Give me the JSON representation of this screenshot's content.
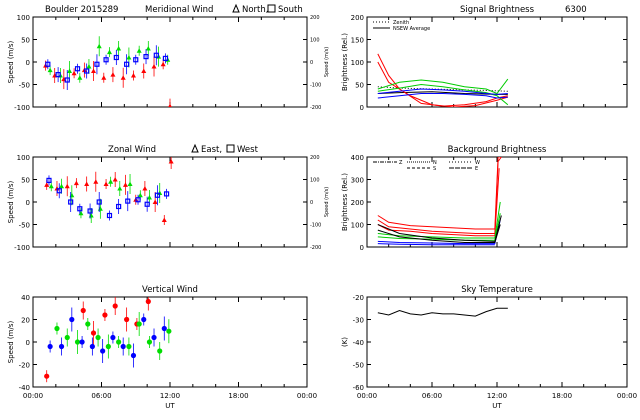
{
  "chart_data": [
    {
      "id": "meridional",
      "type": "scatter",
      "title_left": "Boulder  2015289",
      "title": "Meridional Wind",
      "legend_text_1": "North,",
      "legend_text_2": "South",
      "ylabel": "Speed (m/s)",
      "ylabel_right": "Speed (m/s)",
      "ylim": [
        -100,
        100
      ],
      "yticks": [
        "100",
        "50",
        "0",
        "-50",
        "-100"
      ],
      "yticks_right": [
        "200",
        "100",
        "0",
        "-100",
        "-200"
      ],
      "xlim": [
        0,
        24
      ],
      "series": [
        {
          "color": "#ff0000",
          "marker": "triangle",
          "x": [
            1.1,
            1.9,
            2.7,
            3.6,
            4.5,
            5.3,
            6.2,
            7.0,
            7.9,
            8.8,
            9.7,
            10.6,
            11.4,
            12.0
          ],
          "y": [
            -8,
            -30,
            -38,
            -25,
            -18,
            -20,
            -35,
            -28,
            -35,
            -30,
            -20,
            -10,
            -5,
            -98
          ]
        },
        {
          "color": "#00dd00",
          "marker": "triangle",
          "x": [
            1.5,
            2.4,
            3.2,
            4.1,
            4.9,
            5.8,
            6.7,
            7.5,
            8.4,
            9.3,
            10.1,
            11.0,
            11.8
          ],
          "y": [
            -18,
            -30,
            -20,
            -35,
            -10,
            35,
            22,
            30,
            10,
            25,
            30,
            12,
            5
          ]
        },
        {
          "color": "#0000ff",
          "marker": "square",
          "x": [
            1.3,
            2.2,
            3.0,
            3.9,
            4.7,
            5.6,
            6.4,
            7.3,
            8.2,
            9.0,
            9.9,
            10.8,
            11.6
          ],
          "y": [
            -5,
            -28,
            -40,
            -15,
            -20,
            -5,
            5,
            10,
            -5,
            5,
            12,
            15,
            8
          ]
        }
      ]
    },
    {
      "id": "zonal",
      "type": "scatter",
      "title": "Zonal Wind",
      "legend_text_1": "East,",
      "legend_text_2": "West",
      "ylabel": "Speed (m/s)",
      "ylabel_right": "Speed (m/s)",
      "ylim": [
        -100,
        100
      ],
      "yticks": [
        "100",
        "50",
        "0",
        "-50",
        "-100"
      ],
      "yticks_right": [
        "200",
        "100",
        "0",
        "-100",
        "-200"
      ],
      "xlim": [
        0,
        24
      ],
      "series": [
        {
          "color": "#ff0000",
          "marker": "triangle",
          "x": [
            1.2,
            2.1,
            3.0,
            3.8,
            4.7,
            5.5,
            6.4,
            7.2,
            8.1,
            9.0,
            9.8,
            10.7,
            11.5,
            12.1
          ],
          "y": [
            38,
            30,
            35,
            42,
            40,
            45,
            40,
            50,
            38,
            5,
            30,
            0,
            -40,
            90
          ]
        },
        {
          "color": "#00dd00",
          "marker": "triangle",
          "x": [
            1.6,
            2.5,
            3.4,
            4.2,
            5.1,
            5.9,
            6.8,
            7.6,
            8.5,
            9.4,
            10.2,
            11.1
          ],
          "y": [
            35,
            35,
            15,
            -25,
            -30,
            -15,
            45,
            30,
            40,
            15,
            10,
            20
          ]
        },
        {
          "color": "#0000ff",
          "marker": "square",
          "x": [
            1.4,
            2.3,
            3.3,
            4.1,
            5.0,
            5.8,
            6.7,
            7.5,
            8.3,
            9.2,
            10.0,
            10.9,
            11.7
          ],
          "y": [
            48,
            25,
            0,
            -15,
            -20,
            0,
            -30,
            -10,
            2,
            5,
            -5,
            15,
            18
          ]
        }
      ]
    },
    {
      "id": "vertical",
      "type": "scatter",
      "title": "Vertical Wind",
      "ylabel": "Speed (m/s)",
      "ylim": [
        -50,
        50
      ],
      "yticks": [
        "40",
        "20",
        "0",
        "-20",
        "-40"
      ],
      "xlim": [
        0,
        24
      ],
      "xticks": [
        "00:00",
        "06:00",
        "12:00",
        "18:00",
        "00:00"
      ],
      "xlabel": "UT",
      "series": [
        {
          "color": "#ff0000",
          "marker": "circle",
          "x": [
            1.2,
            4.4,
            5.3,
            6.3,
            7.2,
            8.2,
            9.1,
            10.1
          ],
          "y": [
            -38,
            35,
            10,
            30,
            40,
            25,
            20,
            45
          ]
        },
        {
          "color": "#00dd00",
          "marker": "circle",
          "x": [
            2.1,
            3.0,
            3.9,
            4.8,
            5.7,
            6.6,
            7.5,
            8.4,
            9.3,
            10.2,
            11.1,
            11.9
          ],
          "y": [
            15,
            5,
            0,
            20,
            5,
            -5,
            0,
            -5,
            20,
            0,
            -10,
            12
          ]
        },
        {
          "color": "#0000ff",
          "marker": "circle",
          "x": [
            1.5,
            2.5,
            3.4,
            4.3,
            5.2,
            6.1,
            7.0,
            7.9,
            8.8,
            9.7,
            10.6,
            11.5
          ],
          "y": [
            -5,
            -5,
            25,
            0,
            -5,
            -10,
            5,
            -5,
            -15,
            25,
            5,
            15
          ]
        }
      ]
    },
    {
      "id": "signal",
      "type": "line",
      "title": "Signal Brightness",
      "title_right": "6300",
      "ylabel": "Brightness (Rel.)",
      "legend": [
        "Zenith",
        "NSEW Average"
      ],
      "ylim": [
        0,
        200
      ],
      "yticks": [
        "200",
        "150",
        "100",
        "50",
        "0"
      ],
      "xlim": [
        0,
        24
      ],
      "series": [
        {
          "name": "Zenith",
          "color": "#000000",
          "dashed": true,
          "x": [
            1,
            3,
            6,
            9,
            12,
            13
          ],
          "y": [
            45,
            42,
            40,
            38,
            36,
            35
          ]
        },
        {
          "name": "NSEW Average",
          "color": "#000000",
          "dashed": false,
          "x": [
            1,
            3,
            6,
            9,
            12,
            13
          ],
          "y": [
            30,
            32,
            34,
            30,
            28,
            28
          ]
        },
        {
          "color": "#ff0000",
          "x": [
            1,
            2,
            3,
            5,
            7,
            9,
            11,
            12,
            13
          ],
          "y": [
            118,
            70,
            40,
            8,
            2,
            5,
            12,
            20,
            25
          ]
        },
        {
          "color": "#ff0000",
          "x": [
            1,
            2,
            4,
            6,
            8,
            10,
            12,
            13
          ],
          "y": [
            100,
            55,
            25,
            5,
            0,
            3,
            15,
            22
          ]
        },
        {
          "color": "#00cc00",
          "x": [
            1,
            3,
            5,
            7,
            9,
            11,
            12,
            13
          ],
          "y": [
            40,
            55,
            60,
            55,
            45,
            40,
            30,
            62
          ]
        },
        {
          "color": "#00cc00",
          "x": [
            1,
            3,
            5,
            7,
            9,
            11,
            12,
            13
          ],
          "y": [
            35,
            42,
            50,
            45,
            38,
            32,
            25,
            5
          ]
        },
        {
          "color": "#0000ff",
          "x": [
            1,
            3,
            5,
            7,
            9,
            11,
            12,
            13
          ],
          "y": [
            20,
            25,
            30,
            30,
            28,
            25,
            20,
            22
          ]
        },
        {
          "color": "#0000ff",
          "x": [
            1,
            3,
            5,
            7,
            9,
            11,
            12,
            13
          ],
          "y": [
            30,
            35,
            40,
            38,
            35,
            30,
            28,
            30
          ]
        }
      ]
    },
    {
      "id": "background",
      "type": "line",
      "title": "Background Brightness",
      "ylabel": "Brightness (Rel.)",
      "legend": [
        "Z",
        "N",
        "S",
        "W",
        "E"
      ],
      "ylim": [
        0,
        400
      ],
      "yticks": [
        "400",
        "300",
        "200",
        "100",
        "0"
      ],
      "xlim": [
        0,
        24
      ],
      "series": [
        {
          "color": "#ff0000",
          "x": [
            1,
            2,
            4,
            6,
            8,
            10,
            11.8,
            12.1,
            12.4
          ],
          "y": [
            140,
            110,
            95,
            90,
            85,
            80,
            80,
            400,
            400
          ]
        },
        {
          "color": "#ff0000",
          "x": [
            1,
            2,
            4,
            6,
            8,
            10,
            11.8,
            12.1,
            12.4
          ],
          "y": [
            120,
            90,
            80,
            70,
            65,
            60,
            60,
            380,
            400
          ]
        },
        {
          "color": "#ff0000",
          "x": [
            1,
            2,
            4,
            6,
            8,
            10,
            11.8,
            12.2
          ],
          "y": [
            100,
            75,
            70,
            60,
            55,
            50,
            50,
            350
          ]
        },
        {
          "color": "#00cc00",
          "x": [
            1,
            3,
            6,
            9,
            11.8,
            12.3
          ],
          "y": [
            60,
            50,
            45,
            40,
            40,
            200
          ]
        },
        {
          "color": "#00cc00",
          "x": [
            1,
            3,
            6,
            9,
            11.8,
            12.3
          ],
          "y": [
            45,
            38,
            35,
            30,
            30,
            150
          ]
        },
        {
          "color": "#0000ff",
          "x": [
            1,
            3,
            6,
            9,
            11.8,
            12.3
          ],
          "y": [
            25,
            20,
            18,
            15,
            15,
            120
          ]
        },
        {
          "color": "#0000ff",
          "x": [
            1,
            3,
            6,
            9,
            11.8
          ],
          "y": [
            15,
            12,
            10,
            10,
            10
          ]
        },
        {
          "color": "#000000",
          "x": [
            1,
            3,
            6,
            9,
            11.8,
            12.4
          ],
          "y": [
            100,
            60,
            40,
            30,
            25,
            140
          ]
        },
        {
          "color": "#000000",
          "x": [
            1,
            3,
            6,
            9,
            11.8,
            12.3
          ],
          "y": [
            75,
            45,
            30,
            20,
            20,
            100
          ]
        }
      ]
    },
    {
      "id": "skytemp",
      "type": "line",
      "title": "Sky Temperature",
      "ylabel": "(K)",
      "ylim": [
        -60,
        -20
      ],
      "yticks": [
        "-20",
        "-30",
        "-40",
        "-50",
        "-60"
      ],
      "xlim": [
        0,
        24
      ],
      "xticks": [
        "00:00",
        "06:00",
        "12:00",
        "18:00",
        "00:00"
      ],
      "xlabel": "UT",
      "series": [
        {
          "color": "#000000",
          "x": [
            1,
            2,
            3,
            4,
            5,
            6,
            7,
            8,
            9,
            10,
            11,
            12,
            13
          ],
          "y": [
            -27,
            -28,
            -26,
            -27.5,
            -28,
            -27,
            -27.5,
            -27.5,
            -28,
            -28.5,
            -26.5,
            -25,
            -25
          ]
        }
      ]
    }
  ]
}
